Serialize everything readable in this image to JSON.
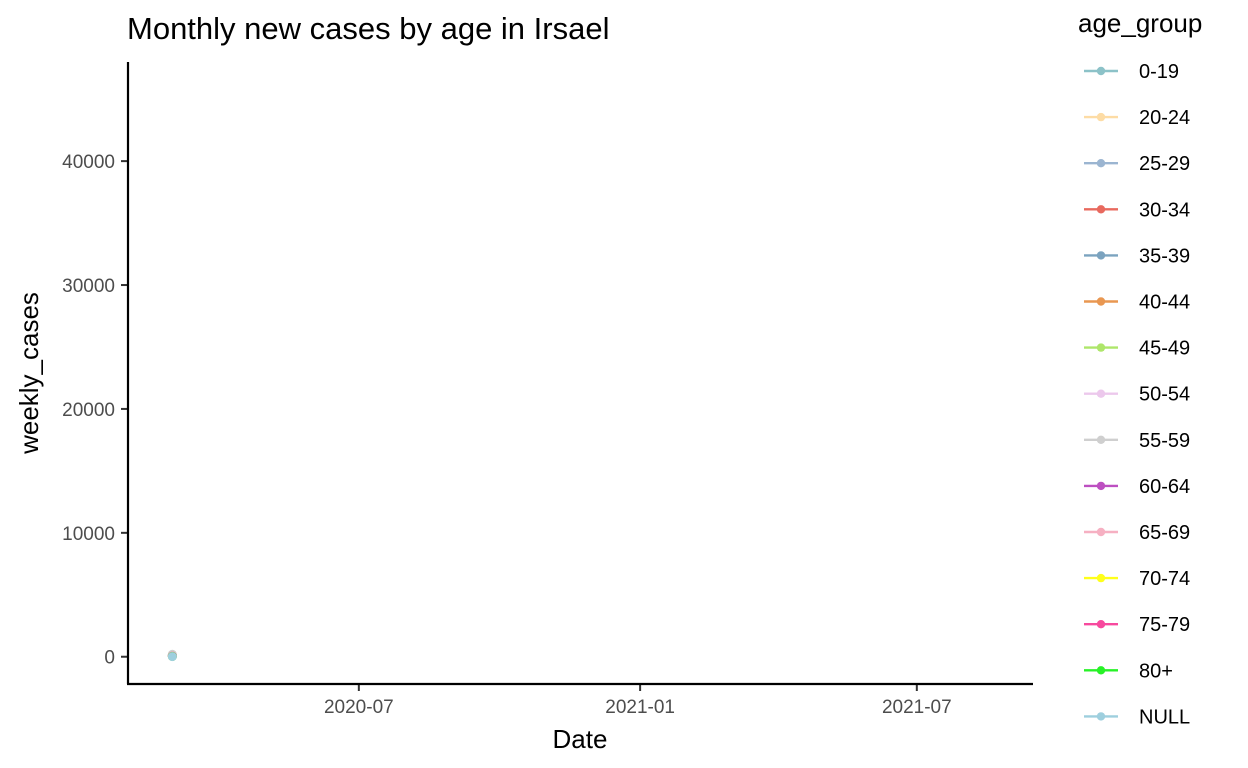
{
  "chart_data": {
    "type": "line",
    "title": "Monthly new cases by age in Irsael",
    "xlabel": "Date",
    "ylabel": "weekly_cases",
    "x_ticks": [
      "2020-07",
      "2021-01",
      "2021-07"
    ],
    "y_ticks": [
      0,
      10000,
      20000,
      30000,
      40000
    ],
    "xlim": [
      "2020-02-01",
      "2021-09-15"
    ],
    "ylim": [
      -2200,
      48000
    ],
    "grid": false,
    "legend_title": "age_group",
    "legend_position": "right",
    "series": [
      {
        "name": "0-19",
        "color": "#8cc2c8",
        "points": [
          {
            "x": "2020-03-01",
            "y": 120
          }
        ]
      },
      {
        "name": "20-24",
        "color": "#fddca5",
        "points": [
          {
            "x": "2020-03-01",
            "y": 150
          }
        ]
      },
      {
        "name": "25-29",
        "color": "#9bb5d1",
        "points": [
          {
            "x": "2020-03-01",
            "y": 140
          }
        ]
      },
      {
        "name": "30-34",
        "color": "#e8695e",
        "points": [
          {
            "x": "2020-03-01",
            "y": 110
          }
        ]
      },
      {
        "name": "35-39",
        "color": "#7ba3bf",
        "points": [
          {
            "x": "2020-03-01",
            "y": 100
          }
        ]
      },
      {
        "name": "40-44",
        "color": "#e99751",
        "points": [
          {
            "x": "2020-03-01",
            "y": 90
          }
        ]
      },
      {
        "name": "45-49",
        "color": "#aee66a",
        "points": [
          {
            "x": "2020-03-01",
            "y": 80
          }
        ]
      },
      {
        "name": "50-54",
        "color": "#ecc8ec",
        "points": [
          {
            "x": "2020-03-01",
            "y": 70
          }
        ]
      },
      {
        "name": "55-59",
        "color": "#cfcfcf",
        "points": [
          {
            "x": "2020-03-01",
            "y": 200
          }
        ]
      },
      {
        "name": "60-64",
        "color": "#bd4fc1",
        "points": [
          {
            "x": "2020-03-01",
            "y": 60
          }
        ]
      },
      {
        "name": "65-69",
        "color": "#f6b0c2",
        "points": [
          {
            "x": "2020-03-01",
            "y": 50
          }
        ]
      },
      {
        "name": "70-74",
        "color": "#ffff1a",
        "points": [
          {
            "x": "2020-03-01",
            "y": 40
          }
        ]
      },
      {
        "name": "75-79",
        "color": "#f7499e",
        "points": [
          {
            "x": "2020-03-01",
            "y": 30
          }
        ]
      },
      {
        "name": "80+",
        "color": "#27f227",
        "points": [
          {
            "x": "2020-03-01",
            "y": 20
          }
        ]
      },
      {
        "name": "NULL",
        "color": "#9ecfde",
        "points": [
          {
            "x": "2020-03-01",
            "y": 10
          }
        ]
      }
    ]
  }
}
